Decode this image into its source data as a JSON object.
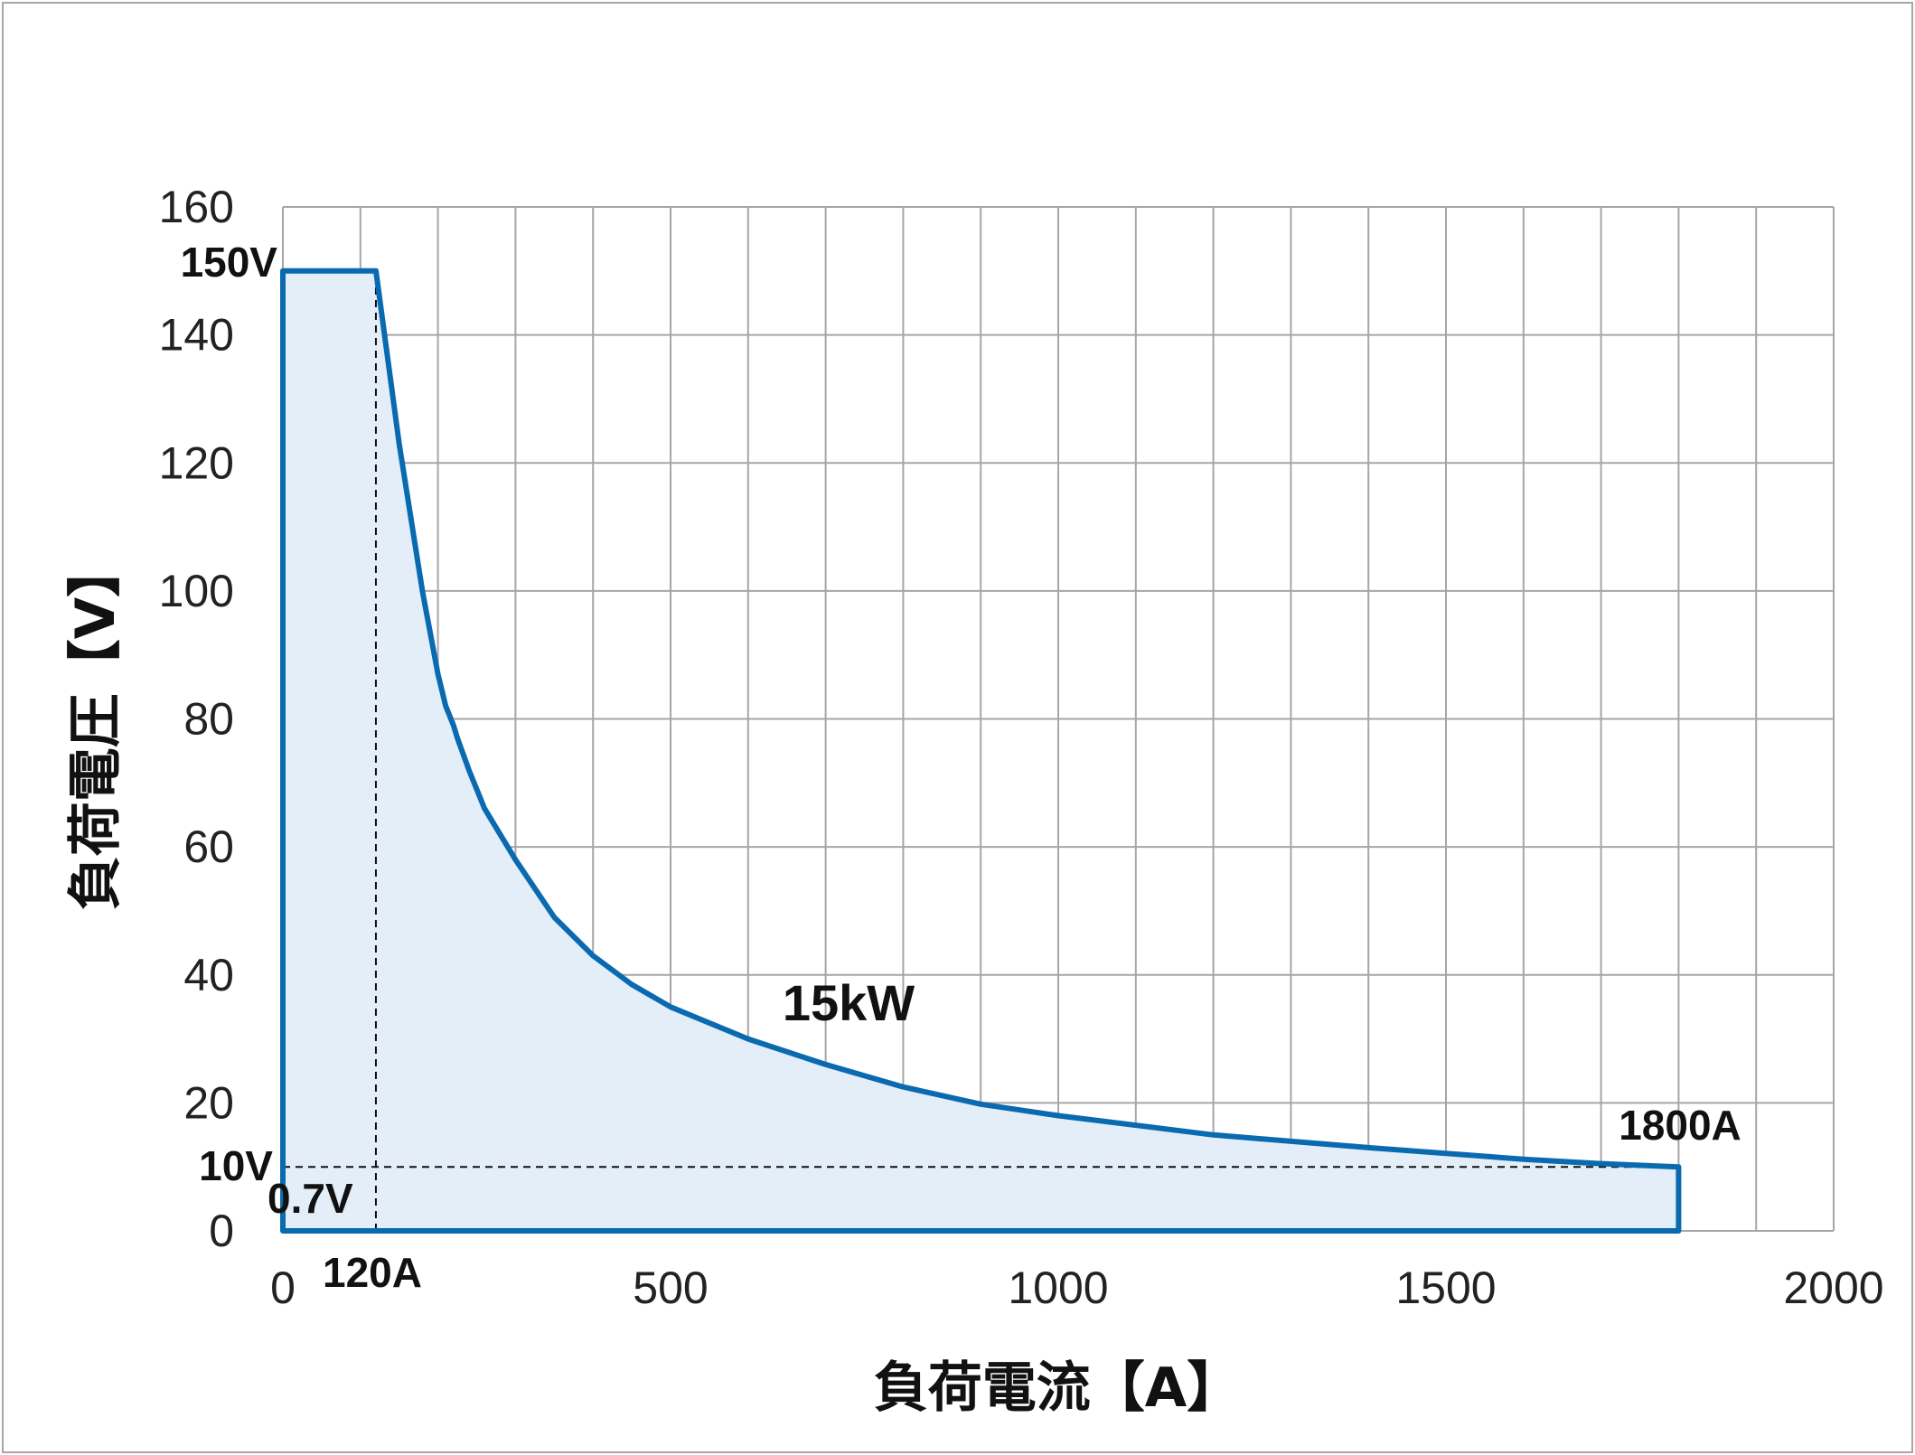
{
  "chart_data": {
    "type": "area",
    "xlabel": "負荷電流【A】",
    "ylabel": "負荷電圧【V】",
    "xlim": [
      0,
      2000
    ],
    "ylim": [
      0,
      160
    ],
    "x_ticks": [
      "0",
      "500",
      "1000",
      "1500",
      "2000"
    ],
    "y_ticks": [
      "0",
      "20",
      "40",
      "60",
      "80",
      "100",
      "120",
      "140",
      "160"
    ],
    "grid": true,
    "colors": {
      "line": "#0a6ab0",
      "fill": "#e3eef8",
      "grid": "#a6a6a6"
    },
    "series": [
      {
        "x": [
          0,
          120,
          150,
          180,
          200,
          210,
          220,
          225,
          240,
          260,
          300,
          350,
          400,
          450,
          500,
          600,
          700,
          800,
          900,
          1000,
          1200,
          1400,
          1600,
          1700,
          1800,
          1800,
          0
        ],
        "y": [
          150,
          150,
          123,
          100,
          87,
          82,
          79,
          77,
          72,
          66,
          58,
          49,
          43,
          38.5,
          35,
          30,
          26,
          22.5,
          19.8,
          18,
          15,
          13,
          11.2,
          10.5,
          10,
          0,
          0
        ]
      }
    ],
    "reference_lines": [
      {
        "type": "vertical",
        "x": 120,
        "from_y": 0,
        "to_y": 150
      },
      {
        "type": "horizontal",
        "y": 10,
        "from_x": 0,
        "to_x": 1800
      }
    ],
    "annotations": {
      "v150": "150V",
      "v10": "10V",
      "v07": "0.7V",
      "a120": "120A",
      "a1800": "1800A",
      "power": "15kW"
    }
  }
}
